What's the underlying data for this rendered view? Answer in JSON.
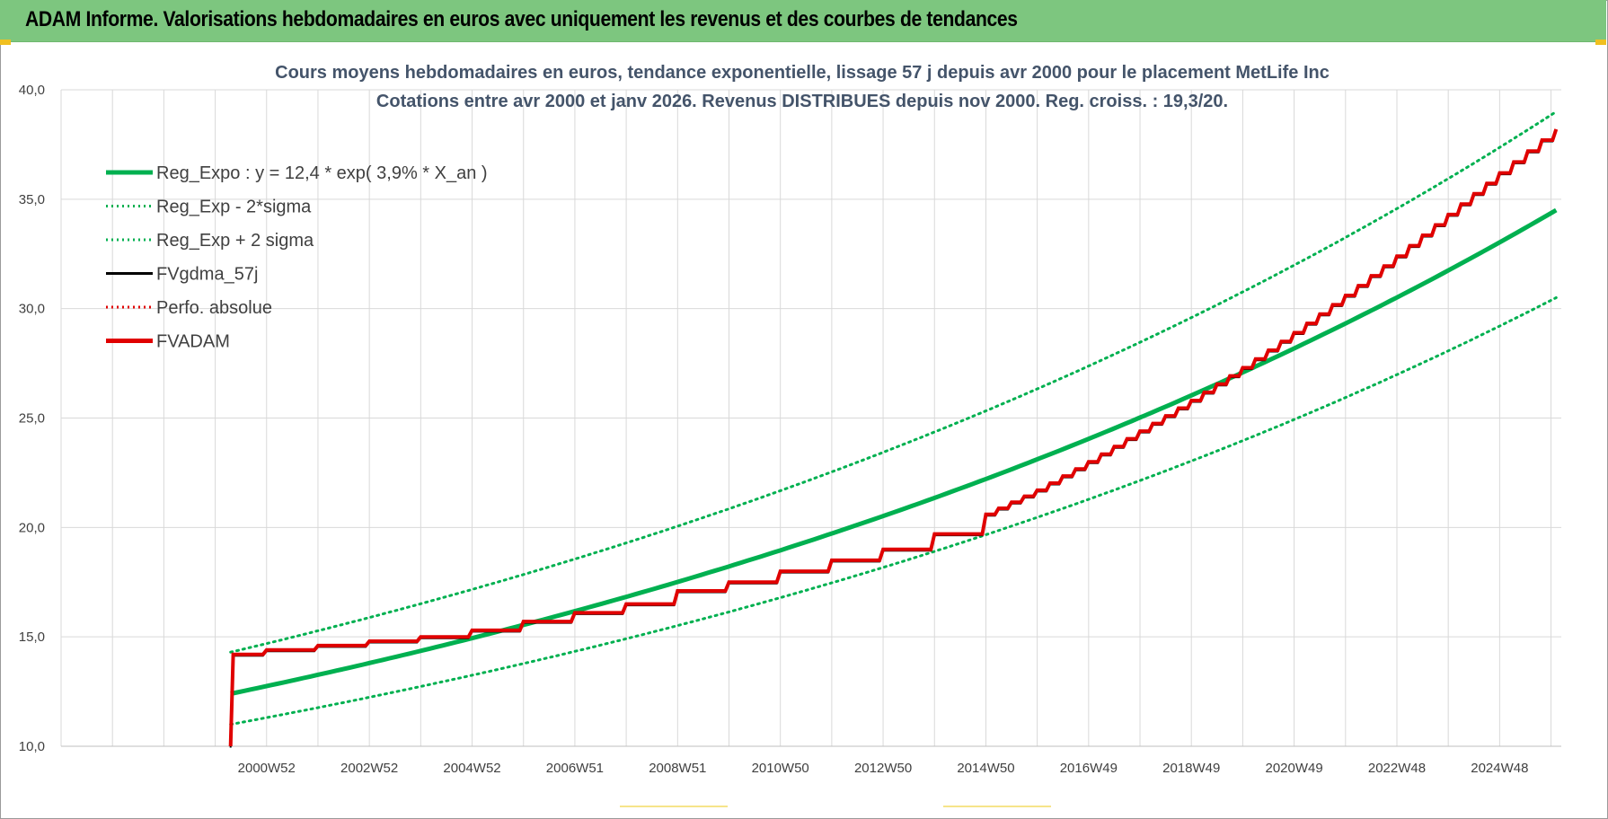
{
  "banner": {
    "title": "ADAM Informe. Valorisations hebdomadaires en euros avec uniquement les revenus et des courbes de tendances"
  },
  "colors": {
    "banner_bg": "#7dc67f",
    "title": "#44546a",
    "grid": "#d9d9d9",
    "reg_expo": "#00b050",
    "fvgdma": "#000000",
    "fvadam": "#e00000"
  },
  "chart_data": {
    "type": "line",
    "title": "Cours moyens hebdomadaires en euros, tendance exponentielle, lissage 57 j depuis avr 2000 pour le placement MetLife Inc",
    "subtitle": "Cotations entre avr 2000 et janv 2026. Revenus DISTRIBUES depuis nov 2000. Reg. croiss. : 19,3/20.",
    "ylim": [
      10,
      40
    ],
    "y_ticks": [
      "10,0",
      "15,0",
      "20,0",
      "25,0",
      "30,0",
      "35,0",
      "40,0"
    ],
    "x_tick_labels": [
      "2000W52",
      "2002W52",
      "2004W52",
      "2006W51",
      "2008W51",
      "2010W50",
      "2012W50",
      "2014W50",
      "2016W49",
      "2018W49",
      "2020W49",
      "2022W48",
      "2024W48"
    ],
    "x_range_years": [
      1997,
      2026.2
    ],
    "grid": true,
    "legend_position": "top-left",
    "legend": [
      {
        "label": "Reg_Expo : y = 12,4 * exp( 3,9% *  X_an )",
        "color": "#00b050",
        "style": "solid-thick"
      },
      {
        "label": "Reg_Exp - 2*sigma",
        "color": "#00b050",
        "style": "dotted"
      },
      {
        "label": "Reg_Exp + 2 sigma",
        "color": "#00b050",
        "style": "dotted"
      },
      {
        "label": "FVgdma_57j",
        "color": "#000000",
        "style": "solid"
      },
      {
        "label": "Perfo. absolue",
        "color": "#e00000",
        "style": "dotted"
      },
      {
        "label": "FVADAM",
        "color": "#e00000",
        "style": "solid-thick"
      }
    ],
    "series": [
      {
        "name": "Reg_Expo : y = 12,4 * exp( 3,9% *  X_an )",
        "x": [
          2000.3,
          2005,
          2010,
          2015,
          2020,
          2026.1
        ],
        "y": [
          12.4,
          15.4,
          18.8,
          22.6,
          27.6,
          34.5
        ]
      },
      {
        "name": "Reg_Exp - 2*sigma",
        "x": [
          2000.3,
          2005,
          2010,
          2015,
          2020,
          2026.1
        ],
        "y": [
          11.0,
          13.6,
          16.6,
          20.1,
          24.5,
          30.5
        ]
      },
      {
        "name": "Reg_Exp + 2 sigma",
        "x": [
          2000.3,
          2005,
          2010,
          2015,
          2020,
          2026.1
        ],
        "y": [
          14.3,
          17.3,
          21.2,
          25.4,
          31.3,
          39.0
        ]
      },
      {
        "name": "FVADAM",
        "x": [
          2000.3,
          2000.35,
          2001,
          2002,
          2003,
          2004,
          2005,
          2006,
          2007,
          2008,
          2009,
          2010,
          2011,
          2012,
          2013,
          2014,
          2015,
          2016,
          2017,
          2018,
          2019,
          2020,
          2021,
          2022,
          2023,
          2024,
          2025,
          2026.1
        ],
        "y": [
          10.0,
          14.2,
          14.4,
          14.6,
          14.8,
          15.0,
          15.3,
          15.7,
          16.1,
          16.5,
          17.1,
          17.5,
          18.0,
          18.5,
          19.0,
          19.7,
          20.6,
          21.7,
          23.0,
          24.4,
          25.8,
          27.3,
          28.9,
          30.6,
          32.4,
          34.3,
          36.2,
          38.2
        ]
      }
    ]
  }
}
